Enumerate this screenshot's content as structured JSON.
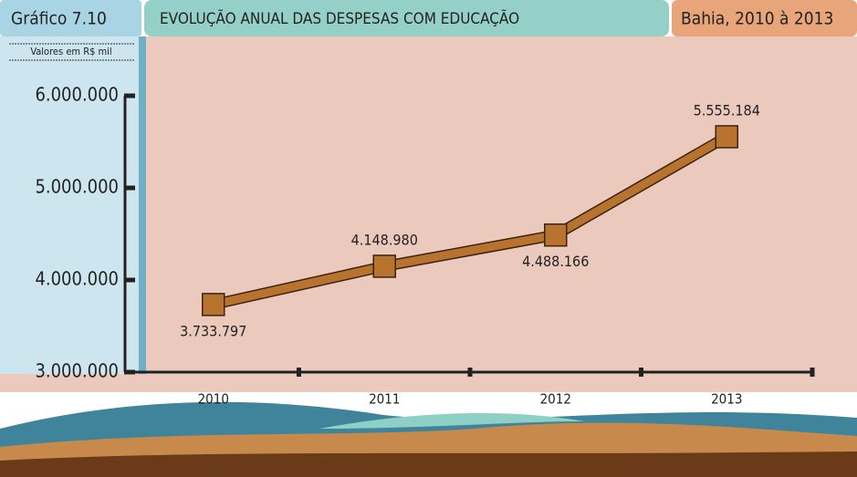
{
  "chart_data": {
    "type": "line",
    "label": "Gráfico 7.10",
    "title": "EVOLUÇÃO ANUAL DAS DESPESAS COM EDUCAÇÃO",
    "subtitle": "Bahia, 2010 à 2013",
    "y_label": "Valores em R$ mil",
    "categories": [
      "2010",
      "2011",
      "2012",
      "2013"
    ],
    "values": [
      3733797,
      4148980,
      4488166,
      5555184
    ],
    "value_labels": [
      "3.733.797",
      "4.148.980",
      "4.488.166",
      "5.555.184"
    ],
    "color": "#b8732f",
    "ylim": [
      3000000,
      6000000
    ],
    "yticks": [
      {
        "value": 3000000,
        "label": "3.000.000"
      },
      {
        "value": 4000000,
        "label": "4.000.000"
      },
      {
        "value": 5000000,
        "label": "5.000.000"
      },
      {
        "value": 6000000,
        "label": "6.000.000"
      }
    ]
  }
}
